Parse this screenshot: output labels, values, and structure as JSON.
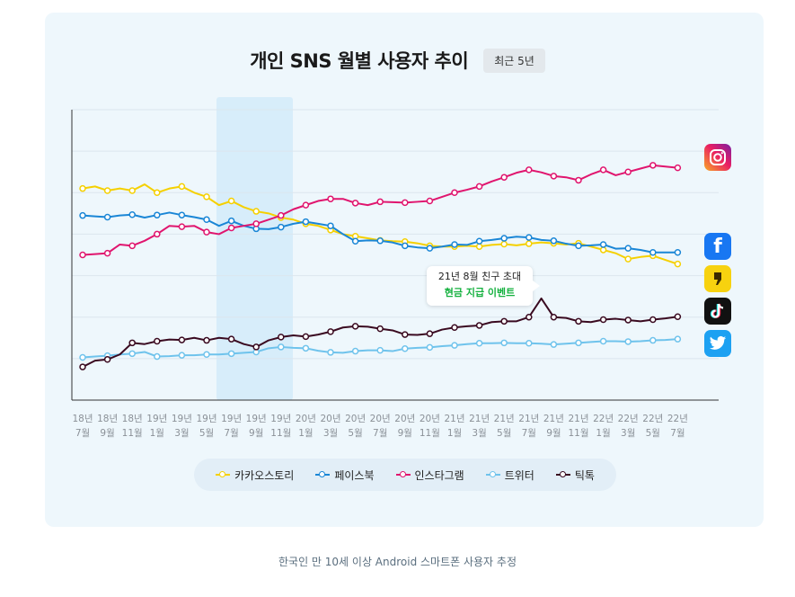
{
  "header": {
    "title": "개인 SNS 월별 사용자 추이",
    "badge": "최근 5년"
  },
  "callout": {
    "line1": "21년 8월 친구 초대",
    "line2": "현금 지급 이벤트"
  },
  "footnote": "한국인 만 10세 이상 Android 스마트폰 사용자 추정",
  "icons": [
    "instagram-icon",
    "facebook-icon",
    "kakaostory-icon",
    "tiktok-icon",
    "twitter-icon"
  ],
  "chart_data": {
    "type": "line",
    "title": "개인 SNS 월별 사용자 추이",
    "xlabel": "",
    "ylabel": "",
    "grid": true,
    "legend_position": "bottom",
    "highlight_period": [
      "19년 7월",
      "19년 11월"
    ],
    "tick_labels": [
      {
        "year": "18년",
        "month": "7월"
      },
      {
        "year": "18년",
        "month": "9월"
      },
      {
        "year": "18년",
        "month": "11월"
      },
      {
        "year": "19년",
        "month": "1월"
      },
      {
        "year": "19년",
        "month": "3월"
      },
      {
        "year": "19년",
        "month": "5월"
      },
      {
        "year": "19년",
        "month": "7월"
      },
      {
        "year": "19년",
        "month": "9월"
      },
      {
        "year": "19년",
        "month": "11월"
      },
      {
        "year": "20년",
        "month": "1월"
      },
      {
        "year": "20년",
        "month": "3월"
      },
      {
        "year": "20년",
        "month": "5월"
      },
      {
        "year": "20년",
        "month": "7월"
      },
      {
        "year": "20년",
        "month": "9월"
      },
      {
        "year": "20년",
        "month": "11월"
      },
      {
        "year": "21년",
        "month": "1월"
      },
      {
        "year": "21년",
        "month": "3월"
      },
      {
        "year": "21년",
        "month": "5월"
      },
      {
        "year": "21년",
        "month": "7월"
      },
      {
        "year": "21년",
        "month": "9월"
      },
      {
        "year": "21년",
        "month": "11월"
      },
      {
        "year": "22년",
        "month": "1월"
      },
      {
        "year": "22년",
        "month": "3월"
      },
      {
        "year": "22년",
        "month": "5월"
      },
      {
        "year": "22년",
        "month": "7월"
      }
    ],
    "x_start": "2018-07",
    "x_end": "2022-07",
    "points_per_series": 49,
    "ylim": [
      0,
      700
    ],
    "series": [
      {
        "name": "카카오스토리",
        "color": "#f5d000",
        "values": [
          510,
          515,
          505,
          510,
          505,
          520,
          500,
          510,
          515,
          500,
          490,
          470,
          480,
          465,
          455,
          450,
          440,
          435,
          425,
          420,
          410,
          400,
          395,
          390,
          385,
          383,
          382,
          378,
          372,
          370,
          370,
          372,
          370,
          374,
          376,
          373,
          377,
          380,
          378,
          375,
          378,
          370,
          362,
          354,
          340,
          345,
          348,
          338,
          328
        ]
      },
      {
        "name": "페이스북",
        "color": "#1a86d6",
        "values": [
          445,
          443,
          441,
          445,
          447,
          440,
          446,
          452,
          446,
          441,
          435,
          420,
          432,
          420,
          413,
          412,
          417,
          425,
          430,
          425,
          420,
          400,
          383,
          385,
          384,
          380,
          372,
          368,
          366,
          370,
          375,
          374,
          383,
          386,
          390,
          394,
          392,
          386,
          384,
          377,
          372,
          373,
          375,
          365,
          366,
          362,
          356,
          356,
          356
        ]
      },
      {
        "name": "인스타그램",
        "color": "#e0156e",
        "values": [
          350,
          352,
          354,
          375,
          372,
          384,
          400,
          420,
          418,
          420,
          405,
          400,
          415,
          420,
          425,
          435,
          445,
          460,
          470,
          480,
          485,
          485,
          475,
          470,
          478,
          477,
          476,
          478,
          480,
          490,
          500,
          507,
          515,
          527,
          537,
          548,
          555,
          549,
          540,
          537,
          530,
          544,
          555,
          542,
          550,
          558,
          566,
          563,
          560
        ]
      },
      {
        "name": "트위터",
        "color": "#6fc3ec",
        "values": [
          103,
          105,
          107,
          110,
          112,
          116,
          105,
          106,
          108,
          108,
          110,
          110,
          112,
          114,
          116,
          125,
          128,
          126,
          125,
          119,
          115,
          114,
          118,
          120,
          120,
          118,
          124,
          126,
          127,
          130,
          132,
          135,
          137,
          137,
          138,
          137,
          137,
          136,
          134,
          136,
          138,
          140,
          142,
          142,
          141,
          142,
          144,
          145,
          147
        ]
      },
      {
        "name": "틱톡",
        "color": "#3a0a20",
        "values": [
          80,
          95,
          98,
          110,
          138,
          135,
          142,
          146,
          145,
          150,
          144,
          150,
          147,
          135,
          128,
          144,
          152,
          156,
          153,
          158,
          165,
          175,
          178,
          177,
          172,
          168,
          158,
          157,
          160,
          170,
          175,
          178,
          180,
          188,
          190,
          190,
          200,
          245,
          200,
          198,
          190,
          188,
          194,
          196,
          193,
          190,
          194,
          197,
          201
        ]
      }
    ]
  }
}
